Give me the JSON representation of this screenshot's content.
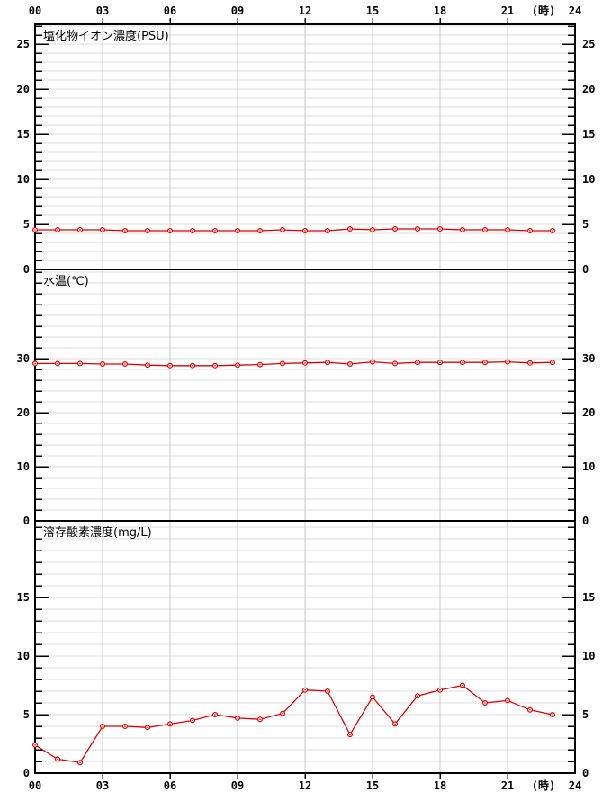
{
  "chart_data": {
    "type": "line",
    "description": "24-hour water quality monitoring chart with three stacked panels, hourly red data points",
    "x_axis": {
      "range_hours": [
        0,
        24
      ],
      "tick_hours": [
        0,
        3,
        6,
        9,
        12,
        15,
        18,
        21,
        24
      ],
      "tick_labels": [
        "00",
        "03",
        "06",
        "09",
        "12",
        "15",
        "18",
        "21",
        "24"
      ],
      "unit_label": "(時)",
      "grid_every_hours": 3
    },
    "series_x_hours": [
      0,
      1,
      2,
      3,
      4,
      5,
      6,
      7,
      8,
      9,
      10,
      11,
      12,
      13,
      14,
      15,
      16,
      17,
      18,
      19,
      20,
      21,
      22,
      23
    ],
    "panels": [
      {
        "title": "塩化物イオン濃度(PSU)",
        "ylabel": "PSU",
        "ylim": [
          0,
          27
        ],
        "y_major_ticks": [
          0,
          5,
          10,
          15,
          20,
          25
        ],
        "y_minor_step": 1,
        "values": [
          4.4,
          4.4,
          4.4,
          4.4,
          4.3,
          4.3,
          4.3,
          4.3,
          4.3,
          4.3,
          4.3,
          4.4,
          4.3,
          4.3,
          4.5,
          4.4,
          4.5,
          4.5,
          4.5,
          4.4,
          4.4,
          4.4,
          4.3,
          4.3
        ]
      },
      {
        "title": "水温(℃)",
        "ylabel": "℃",
        "ylim": [
          0,
          46
        ],
        "y_major_ticks": [
          0,
          10,
          20,
          30
        ],
        "y_minor_step": 2,
        "values": [
          29.1,
          29.1,
          29.1,
          29.0,
          29.0,
          28.8,
          28.7,
          28.7,
          28.7,
          28.8,
          28.9,
          29.1,
          29.2,
          29.3,
          29.0,
          29.4,
          29.1,
          29.3,
          29.3,
          29.3,
          29.3,
          29.4,
          29.2,
          29.3
        ]
      },
      {
        "title": "溶存酸素濃度(mg/L)",
        "ylabel": "mg/L",
        "ylim": [
          0,
          21
        ],
        "y_major_ticks": [
          0,
          5,
          10,
          15
        ],
        "y_minor_step": 1,
        "values": [
          2.4,
          1.2,
          0.9,
          4.0,
          4.0,
          3.9,
          4.2,
          4.5,
          5.0,
          4.7,
          4.6,
          5.1,
          7.1,
          7.0,
          3.3,
          6.5,
          4.2,
          6.6,
          7.1,
          7.5,
          6.0,
          6.2,
          5.4,
          5.0
        ]
      }
    ],
    "style": {
      "line_color": "#dd0000",
      "marker": "open-circle",
      "grid_h_color": "#dcdcdc",
      "grid_v_color": "#c8c8c8",
      "border_color": "#000000",
      "text_color": "#000000",
      "background_color": "#ffffff",
      "legend": "none"
    }
  }
}
